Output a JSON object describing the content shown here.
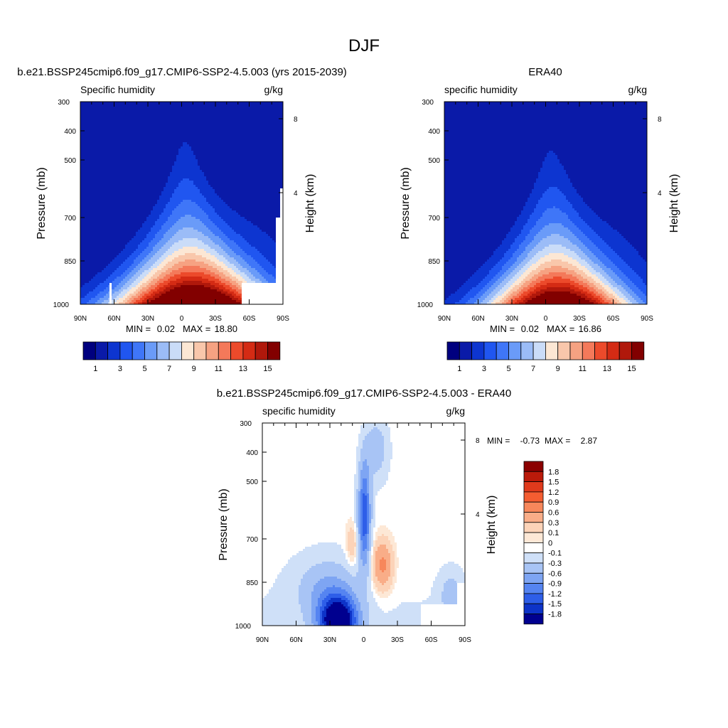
{
  "figure": {
    "main_title": "DJF"
  },
  "chart_data": [
    {
      "type": "heatmap",
      "title": "b.e21.BSSP245cmip6.f09_g17.CMIP6-SSP2-4.5.003 (yrs 2015-2039)",
      "left_label": "Specific humidity",
      "right_label": "g/kg",
      "ylabel": "Pressure (mb)",
      "ylabel_right": "Height (km)",
      "x_ticks": [
        "90N",
        "60N",
        "30N",
        "0",
        "30S",
        "60S",
        "90S"
      ],
      "y_ticks": [
        "300",
        "400",
        "500",
        "700",
        "850",
        "1000"
      ],
      "y_ticks_right": [
        "8",
        "4"
      ],
      "stats": {
        "min_label": "MIN =",
        "min": "0.02",
        "max_label": "MAX =",
        "max": "18.80"
      },
      "levels": [
        0,
        1,
        2,
        3,
        4,
        5,
        6,
        7,
        8,
        9,
        10,
        11,
        12,
        13,
        14,
        15
      ],
      "colorbar_labels": [
        "1",
        "3",
        "5",
        "7",
        "9",
        "11",
        "13",
        "15"
      ],
      "colors": [
        "#00007f",
        "#0a1aa8",
        "#0d35d0",
        "#2056f0",
        "#3f76f8",
        "#6a9bf8",
        "#9bbcf7",
        "#cadcf8",
        "#fce7d4",
        "#f9c7ab",
        "#f6a282",
        "#f4795a",
        "#ec4a2b",
        "#d42b14",
        "#b0180b",
        "#820000"
      ]
    },
    {
      "type": "heatmap",
      "title": "ERA40",
      "left_label": "specific humidity",
      "right_label": "g/kg",
      "ylabel": "Pressure (mb)",
      "ylabel_right": "Height (km)",
      "x_ticks": [
        "90N",
        "60N",
        "30N",
        "0",
        "30S",
        "60S",
        "90S"
      ],
      "y_ticks": [
        "300",
        "400",
        "500",
        "700",
        "850",
        "1000"
      ],
      "y_ticks_right": [
        "8",
        "4"
      ],
      "stats": {
        "min_label": "MIN =",
        "min": "0.02",
        "max_label": "MAX =",
        "max": "16.86"
      },
      "levels": [
        0,
        1,
        2,
        3,
        4,
        5,
        6,
        7,
        8,
        9,
        10,
        11,
        12,
        13,
        14,
        15
      ],
      "colorbar_labels": [
        "1",
        "3",
        "5",
        "7",
        "9",
        "11",
        "13",
        "15"
      ],
      "colors": [
        "#00007f",
        "#0a1aa8",
        "#0d35d0",
        "#2056f0",
        "#3f76f8",
        "#6a9bf8",
        "#9bbcf7",
        "#cadcf8",
        "#fce7d4",
        "#f9c7ab",
        "#f6a282",
        "#f4795a",
        "#ec4a2b",
        "#d42b14",
        "#b0180b",
        "#820000"
      ]
    },
    {
      "type": "heatmap",
      "title": "b.e21.BSSP245cmip6.f09_g17.CMIP6-SSP2-4.5.003 - ERA40",
      "left_label": "specific humidity",
      "right_label": "g/kg",
      "ylabel": "Pressure (mb)",
      "ylabel_right": "Height (km)",
      "x_ticks": [
        "90N",
        "60N",
        "30N",
        "0",
        "30S",
        "60S",
        "90S"
      ],
      "y_ticks": [
        "300",
        "400",
        "500",
        "700",
        "850",
        "1000"
      ],
      "y_ticks_right": [
        "8",
        "4"
      ],
      "stats": {
        "min_label": "MIN =",
        "min": "-0.73",
        "max_label": "MAX =",
        "max": "2.87"
      },
      "levels": [
        -1.8,
        -1.5,
        -1.2,
        -0.9,
        -0.6,
        -0.3,
        -0.1,
        0,
        0.1,
        0.3,
        0.6,
        0.9,
        1.2,
        1.5,
        1.8
      ],
      "colorbar_labels": [
        "1.8",
        "1.5",
        "1.2",
        "0.9",
        "0.6",
        "0.3",
        "0.1",
        "0",
        "-0.1",
        "-0.3",
        "-0.6",
        "-0.9",
        "-1.2",
        "-1.5",
        "-1.8"
      ],
      "colors": [
        "#8b0000",
        "#bb1a0a",
        "#e03a1c",
        "#f45d31",
        "#f7875b",
        "#f9ad88",
        "#fcd3b8",
        "#fde8d6",
        "#ffffff",
        "#cfe0f8",
        "#a8c4f5",
        "#7ea5f3",
        "#5584f1",
        "#2e5ee8",
        "#0d33c8",
        "#00008f"
      ]
    }
  ]
}
